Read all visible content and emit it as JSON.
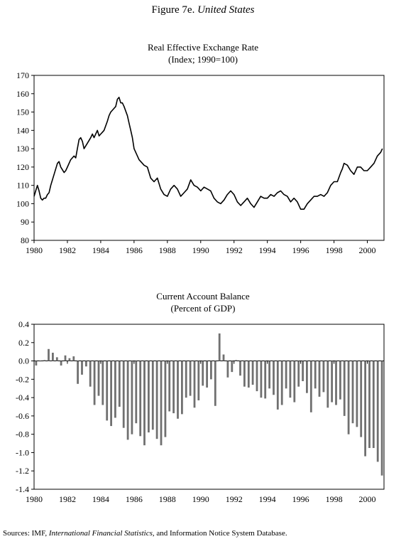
{
  "figure": {
    "label": "Figure 7e.",
    "country": "United States"
  },
  "source": {
    "prefix": "Sources: IMF,",
    "italic": "International Financial Statistics",
    "suffix": ", and Information Notice System Database."
  },
  "chart_data": [
    {
      "type": "line",
      "title": "Real Effective Exchange Rate",
      "subtitle": "(Index; 1990=100)",
      "ylim": [
        80,
        170
      ],
      "yticks": [
        80,
        90,
        100,
        110,
        120,
        130,
        140,
        150,
        160,
        170
      ],
      "xlim": [
        1980,
        2001
      ],
      "xticks": [
        1980,
        1982,
        1984,
        1986,
        1988,
        1990,
        1992,
        1994,
        1996,
        1998,
        2000
      ],
      "grid": false,
      "series": [
        {
          "x": [
            1980.0,
            1980.1,
            1980.2,
            1980.3,
            1980.4,
            1980.5,
            1980.6,
            1980.7,
            1980.8,
            1980.9,
            1981.0,
            1981.2,
            1981.4,
            1981.5,
            1981.6,
            1981.8,
            1981.9,
            1982.0,
            1982.2,
            1982.4,
            1982.5,
            1982.6,
            1982.7,
            1982.8,
            1982.9,
            1983.0,
            1983.2,
            1983.4,
            1983.5,
            1983.6,
            1983.8,
            1983.9,
            1984.0,
            1984.1,
            1984.2,
            1984.4,
            1984.5,
            1984.6,
            1984.8,
            1984.9,
            1985.0,
            1985.1,
            1985.2,
            1985.3,
            1985.4,
            1985.6,
            1985.7,
            1985.8,
            1985.9,
            1986.0,
            1986.2,
            1986.3,
            1986.5,
            1986.6,
            1986.8,
            1987.0,
            1987.2,
            1987.4,
            1987.6,
            1987.8,
            1988.0,
            1988.2,
            1988.4,
            1988.6,
            1988.8,
            1989.0,
            1989.2,
            1989.4,
            1989.6,
            1989.8,
            1990.0,
            1990.2,
            1990.4,
            1990.6,
            1990.8,
            1991.0,
            1991.2,
            1991.4,
            1991.6,
            1991.8,
            1992.0,
            1992.2,
            1992.4,
            1992.6,
            1992.8,
            1993.0,
            1993.2,
            1993.4,
            1993.6,
            1993.8,
            1994.0,
            1994.2,
            1994.4,
            1994.6,
            1994.8,
            1995.0,
            1995.2,
            1995.4,
            1995.6,
            1995.8,
            1996.0,
            1996.2,
            1996.4,
            1996.6,
            1996.8,
            1997.0,
            1997.2,
            1997.4,
            1997.6,
            1997.8,
            1998.0,
            1998.2,
            1998.4,
            1998.5,
            1998.6,
            1998.8,
            1999.0,
            1999.2,
            1999.4,
            1999.6,
            1999.8,
            2000.0,
            2000.2,
            2000.4,
            2000.6,
            2000.8,
            2000.9
          ],
          "y": [
            104,
            107,
            110,
            107,
            103,
            102,
            103,
            103,
            105,
            106,
            110,
            116,
            122,
            123,
            120,
            117,
            118,
            120,
            124,
            126,
            125,
            130,
            135,
            136,
            134,
            130,
            133,
            136,
            138,
            136,
            140,
            137,
            138,
            139,
            140,
            145,
            148,
            150,
            152,
            153,
            157,
            158,
            155,
            155,
            153,
            148,
            144,
            140,
            136,
            130,
            126,
            124,
            122,
            121,
            120,
            114,
            112,
            114,
            108,
            105,
            104,
            108,
            110,
            108,
            104,
            106,
            108,
            113,
            110,
            109,
            107,
            109,
            108,
            107,
            103,
            101,
            100,
            102,
            105,
            107,
            105,
            101,
            99,
            101,
            103,
            100,
            98,
            101,
            104,
            103,
            103,
            105,
            104,
            106,
            107,
            105,
            104,
            101,
            103,
            101,
            97,
            97,
            100,
            102,
            104,
            104,
            105,
            104,
            106,
            110,
            112,
            112,
            117,
            119,
            122,
            121,
            118,
            116,
            120,
            120,
            118,
            118,
            120,
            122,
            126,
            128,
            130
          ]
        }
      ]
    },
    {
      "type": "bar",
      "title": "Current Account Balance",
      "subtitle": "(Percent of GDP)",
      "ylim": [
        -1.4,
        0.4
      ],
      "yticks": [
        -1.4,
        -1.2,
        -1.0,
        -0.8,
        -0.6,
        -0.4,
        -0.2,
        0.0,
        0.2,
        0.4
      ],
      "ytick_labels": [
        "-1.4",
        "-1.2",
        "-1.0",
        "-0.8",
        "-0.6",
        "-0.4",
        "-0.2",
        "0.0",
        "0.2",
        "0.4"
      ],
      "xlim": [
        1980,
        2001
      ],
      "xticks": [
        1980,
        1982,
        1984,
        1986,
        1988,
        1990,
        1992,
        1994,
        1996,
        1998,
        2000
      ],
      "grid": false,
      "series": [
        {
          "x": [
            1980.125,
            1980.375,
            1980.625,
            1980.875,
            1981.125,
            1981.375,
            1981.625,
            1981.875,
            1982.125,
            1982.375,
            1982.625,
            1982.875,
            1983.125,
            1983.375,
            1983.625,
            1983.875,
            1984.125,
            1984.375,
            1984.625,
            1984.875,
            1985.125,
            1985.375,
            1985.625,
            1985.875,
            1986.125,
            1986.375,
            1986.625,
            1986.875,
            1987.125,
            1987.375,
            1987.625,
            1987.875,
            1988.125,
            1988.375,
            1988.625,
            1988.875,
            1989.125,
            1989.375,
            1989.625,
            1989.875,
            1990.125,
            1990.375,
            1990.625,
            1990.875,
            1991.125,
            1991.375,
            1991.625,
            1991.875,
            1992.125,
            1992.375,
            1992.625,
            1992.875,
            1993.125,
            1993.375,
            1993.625,
            1993.875,
            1994.125,
            1994.375,
            1994.625,
            1994.875,
            1995.125,
            1995.375,
            1995.625,
            1995.875,
            1996.125,
            1996.375,
            1996.625,
            1996.875,
            1997.125,
            1997.375,
            1997.625,
            1997.875,
            1998.125,
            1998.375,
            1998.625,
            1998.875,
            1999.125,
            1999.375,
            1999.625,
            1999.875,
            2000.125,
            2000.375,
            2000.625,
            2000.875
          ],
          "values": [
            -0.05,
            0.0,
            0.01,
            0.13,
            0.09,
            0.04,
            -0.05,
            0.06,
            0.03,
            0.05,
            -0.25,
            -0.15,
            -0.06,
            -0.28,
            -0.48,
            -0.38,
            -0.48,
            -0.65,
            -0.71,
            -0.62,
            -0.5,
            -0.73,
            -0.86,
            -0.8,
            -0.68,
            -0.82,
            -0.92,
            -0.78,
            -0.75,
            -0.85,
            -0.92,
            -0.83,
            -0.55,
            -0.57,
            -0.63,
            -0.58,
            -0.4,
            -0.38,
            -0.51,
            -0.43,
            -0.27,
            -0.29,
            -0.2,
            -0.49,
            0.3,
            0.07,
            -0.18,
            -0.12,
            0.01,
            -0.16,
            -0.28,
            -0.29,
            -0.26,
            -0.33,
            -0.4,
            -0.41,
            -0.3,
            -0.37,
            -0.53,
            -0.48,
            -0.3,
            -0.4,
            -0.45,
            -0.28,
            -0.22,
            -0.35,
            -0.56,
            -0.3,
            -0.39,
            -0.34,
            -0.51,
            -0.45,
            -0.48,
            -0.42,
            -0.6,
            -0.8,
            -0.68,
            -0.72,
            -0.83,
            -1.04,
            -0.95,
            -0.95,
            -1.1,
            -1.25
          ]
        }
      ]
    }
  ]
}
